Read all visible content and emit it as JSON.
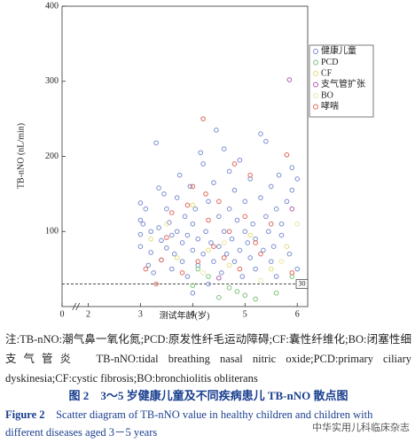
{
  "chart_data": {
    "type": "scatter",
    "ylabel": "TB-nNO (nL/min)",
    "xlabel": "测试年龄(岁)",
    "xlim": [
      0,
      6.2
    ],
    "x_break": [
      0.25,
      1.75
    ],
    "xticks": [
      0,
      2,
      3,
      4,
      5,
      6
    ],
    "ylim": [
      0,
      400
    ],
    "yticks": [
      100,
      200,
      300,
      400
    ],
    "reference_line": 30,
    "series": [
      {
        "name": "健康儿童",
        "color": "#7b8fd0",
        "x": [
          3.0,
          3.0,
          3.0,
          3.0,
          3.05,
          3.1,
          3.15,
          3.2,
          3.2,
          3.25,
          3.3,
          3.35,
          3.35,
          3.4,
          3.4,
          3.45,
          3.5,
          3.5,
          3.55,
          3.6,
          3.6,
          3.65,
          3.7,
          3.7,
          3.75,
          3.8,
          3.8,
          3.85,
          3.9,
          3.9,
          3.95,
          4.0,
          4.0,
          4.0,
          4.05,
          4.1,
          4.1,
          4.15,
          4.2,
          4.2,
          4.25,
          4.3,
          4.3,
          4.35,
          4.4,
          4.4,
          4.45,
          4.5,
          4.5,
          4.55,
          4.6,
          4.6,
          4.65,
          4.7,
          4.7,
          4.75,
          4.8,
          4.8,
          4.85,
          4.9,
          4.9,
          4.95,
          5.0,
          5.0,
          5.05,
          5.1,
          5.1,
          5.15,
          5.2,
          5.2,
          5.3,
          5.3,
          5.35,
          5.4,
          5.4,
          5.45,
          5.5,
          5.5,
          5.55,
          5.6,
          5.6,
          5.65,
          5.7,
          5.7,
          5.8,
          5.85,
          5.9,
          5.9,
          6.0,
          6.0
        ],
        "values": [
          138,
          115,
          96,
          80,
          110,
          130,
          55,
          100,
          72,
          45,
          218,
          158,
          105,
          88,
          62,
          150,
          130,
          78,
          112,
          95,
          50,
          70,
          145,
          100,
          175,
          85,
          60,
          120,
          40,
          95,
          160,
          110,
          75,
          18,
          130,
          90,
          55,
          205,
          190,
          70,
          100,
          140,
          30,
          85,
          165,
          60,
          235,
          120,
          80,
          45,
          210,
          100,
          70,
          130,
          180,
          90,
          155,
          60,
          115,
          75,
          195,
          40,
          140,
          100,
          85,
          65,
          170,
          110,
          50,
          90,
          230,
          145,
          75,
          120,
          220,
          100,
          160,
          60,
          80,
          130,
          40,
          175,
          95,
          110,
          140,
          70,
          155,
          185,
          170,
          50
        ]
      },
      {
        "name": "PCD",
        "color": "#7cc47a",
        "x": [
          4.0,
          4.3,
          4.5,
          4.7,
          4.85,
          5.0,
          5.2,
          5.6,
          5.9,
          4.1
        ],
        "values": [
          28,
          40,
          12,
          25,
          20,
          15,
          10,
          18,
          40,
          50
        ]
      },
      {
        "name": "CF",
        "color": "#e3de7a",
        "x": [
          3.2,
          3.7,
          4.0,
          4.3,
          4.7,
          5.1,
          5.5,
          5.8
        ],
        "values": [
          90,
          65,
          135,
          75,
          55,
          95,
          50,
          80
        ]
      },
      {
        "name": "支气管扩张",
        "color": "#b05ab0",
        "x": [
          5.85,
          5.9,
          4.5
        ],
        "values": [
          302,
          130,
          38
        ]
      },
      {
        "name": "BO",
        "color": "#ece6a4",
        "x": [
          3.5,
          4.2,
          4.6,
          5.3,
          5.7,
          6.0
        ],
        "values": [
          110,
          45,
          85,
          35,
          60,
          110
        ]
      },
      {
        "name": "哮喘",
        "color": "#e06a5a",
        "x": [
          3.1,
          3.4,
          3.5,
          3.6,
          3.8,
          3.9,
          4.0,
          4.1,
          4.2,
          4.25,
          4.3,
          4.4,
          4.5,
          4.6,
          4.7,
          4.8,
          4.9,
          5.0,
          5.1,
          5.2,
          5.3,
          5.5,
          5.8,
          5.9,
          3.3
        ],
        "values": [
          50,
          62,
          92,
          125,
          45,
          135,
          160,
          60,
          250,
          150,
          115,
          80,
          140,
          65,
          100,
          190,
          50,
          120,
          175,
          85,
          70,
          110,
          202,
          45,
          30
        ]
      }
    ]
  },
  "note": "注:TB-nNO:潮气鼻一氧化氮;PCD:原发性纤毛运动障碍;CF:囊性纤维化;BO:闭塞性细支气管炎　TB-nNO:tidal breathing nasal nitric oxide;PCD:primary ciliary dyskinesia;CF:cystic fibrosis;BO:bronchiolitis obliterans",
  "figure_label_cn": "图 2",
  "figure_caption_cn": "3～5 岁健康儿童及不同疾病患儿 TB-nNO 散点图",
  "figure_label_en": "Figure 2",
  "figure_caption_en": "Scatter diagram of TB-nNO value in healthy children and children with different diseases aged 3－5 years",
  "watermark": "中华实用儿科临床杂志"
}
